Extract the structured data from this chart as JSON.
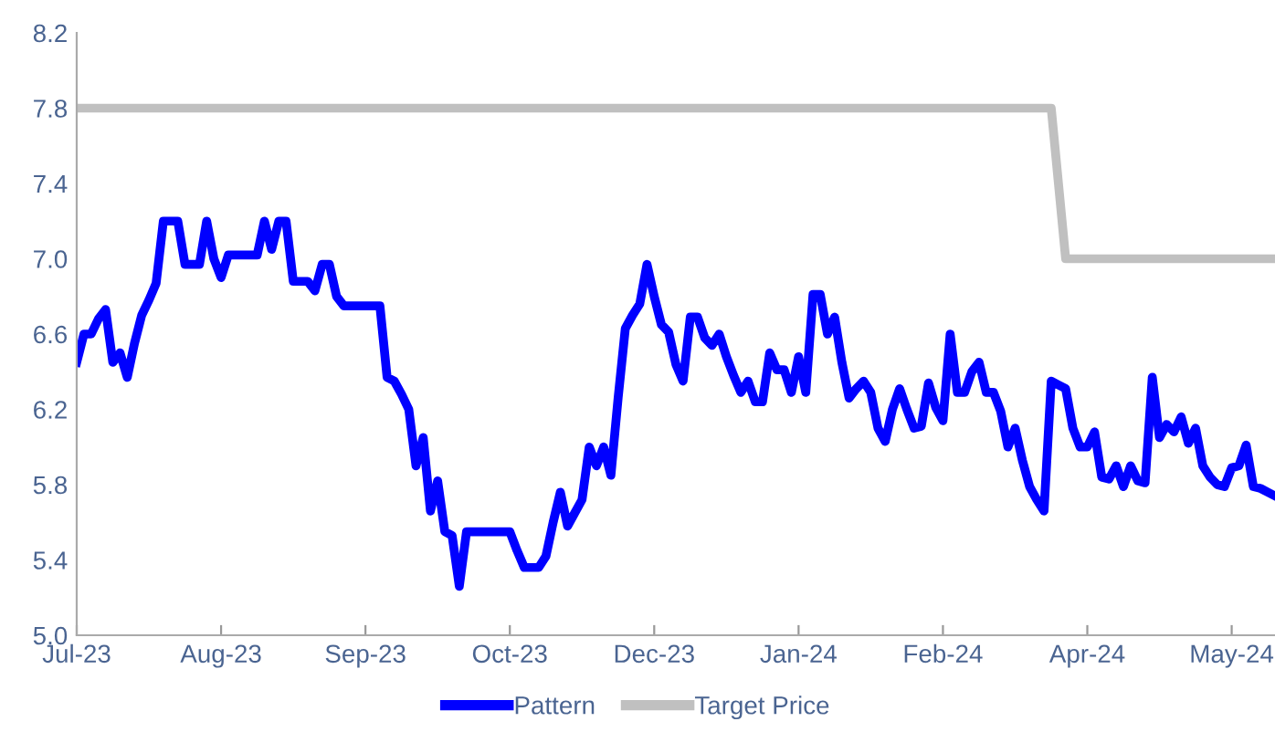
{
  "chart_data": {
    "type": "line",
    "ylim": [
      5.0,
      8.2
    ],
    "yticks": [
      {
        "value": 5.0,
        "label": "5.0"
      },
      {
        "value": 5.4,
        "label": "5.4"
      },
      {
        "value": 5.8,
        "label": "5.8"
      },
      {
        "value": 6.2,
        "label": "6.2"
      },
      {
        "value": 6.6,
        "label": "6.6"
      },
      {
        "value": 7.0,
        "label": "7.0"
      },
      {
        "value": 7.4,
        "label": "7.4"
      },
      {
        "value": 7.8,
        "label": "7.8"
      },
      {
        "value": 8.2,
        "label": "8.2"
      }
    ],
    "categories": [
      "Jul-23",
      null,
      null,
      null,
      null,
      null,
      null,
      null,
      null,
      null,
      null,
      null,
      null,
      null,
      null,
      null,
      null,
      null,
      null,
      null,
      "Aug-23",
      null,
      null,
      null,
      null,
      null,
      null,
      null,
      null,
      null,
      null,
      null,
      null,
      null,
      null,
      null,
      null,
      null,
      null,
      null,
      "Sep-23",
      null,
      null,
      null,
      null,
      null,
      null,
      null,
      null,
      null,
      null,
      null,
      null,
      null,
      null,
      null,
      null,
      null,
      null,
      null,
      "Oct-23",
      null,
      null,
      null,
      null,
      null,
      null,
      null,
      null,
      null,
      null,
      null,
      null,
      null,
      null,
      null,
      null,
      null,
      null,
      null,
      "Dec-23",
      null,
      null,
      null,
      null,
      null,
      null,
      null,
      null,
      null,
      null,
      null,
      null,
      null,
      null,
      null,
      null,
      null,
      null,
      null,
      "Jan-24",
      null,
      null,
      null,
      null,
      null,
      null,
      null,
      null,
      null,
      null,
      null,
      null,
      null,
      null,
      null,
      null,
      null,
      null,
      null,
      "Feb-24",
      null,
      null,
      null,
      null,
      null,
      null,
      null,
      null,
      null,
      null,
      null,
      null,
      null,
      null,
      null,
      null,
      null,
      null,
      null,
      "Apr-24",
      null,
      null,
      null,
      null,
      null,
      null,
      null,
      null,
      null,
      null,
      null,
      null,
      null,
      null,
      null,
      null,
      null,
      null,
      null,
      "May-24",
      null,
      null,
      null,
      null,
      null,
      null
    ],
    "grid": false,
    "legend": "bottom",
    "marker": "none",
    "line_style": "solid",
    "series": [
      {
        "name": "Pattern",
        "color": "#0000ff",
        "values": [
          6.45,
          6.6,
          6.6,
          6.68,
          6.73,
          6.45,
          6.5,
          6.37,
          6.55,
          6.7,
          6.78,
          6.87,
          7.2,
          7.2,
          7.2,
          6.97,
          6.97,
          6.97,
          7.2,
          7.0,
          6.9,
          7.02,
          7.02,
          7.02,
          7.02,
          7.02,
          7.2,
          7.05,
          7.2,
          7.2,
          6.88,
          6.88,
          6.88,
          6.83,
          6.97,
          6.97,
          6.8,
          6.75,
          6.75,
          6.75,
          6.75,
          6.75,
          6.75,
          6.37,
          6.35,
          6.28,
          6.2,
          5.9,
          6.05,
          5.66,
          5.82,
          5.55,
          5.53,
          5.26,
          5.55,
          5.55,
          5.55,
          5.55,
          5.55,
          5.55,
          5.55,
          5.45,
          5.36,
          5.36,
          5.36,
          5.42,
          5.6,
          5.76,
          5.58,
          5.65,
          5.72,
          6.0,
          5.9,
          6.0,
          5.85,
          6.26,
          6.63,
          6.7,
          6.76,
          6.97,
          6.8,
          6.65,
          6.61,
          6.44,
          6.35,
          6.69,
          6.69,
          6.58,
          6.54,
          6.6,
          6.48,
          6.38,
          6.29,
          6.35,
          6.24,
          6.24,
          6.5,
          6.41,
          6.41,
          6.29,
          6.48,
          6.29,
          6.81,
          6.81,
          6.6,
          6.69,
          6.45,
          6.26,
          6.31,
          6.35,
          6.29,
          6.1,
          6.03,
          6.2,
          6.31,
          6.2,
          6.1,
          6.11,
          6.34,
          6.21,
          6.14,
          6.6,
          6.29,
          6.29,
          6.4,
          6.45,
          6.29,
          6.29,
          6.19,
          6.0,
          6.1,
          5.93,
          5.79,
          5.72,
          5.66,
          6.35,
          6.33,
          6.31,
          6.1,
          6.0,
          6.0,
          6.08,
          5.84,
          5.83,
          5.9,
          5.79,
          5.9,
          5.82,
          5.81,
          6.37,
          6.05,
          6.12,
          6.08,
          6.16,
          6.02,
          6.1,
          5.9,
          5.84,
          5.8,
          5.79,
          5.89,
          5.9,
          6.01,
          5.79,
          5.78,
          5.76,
          5.74
        ]
      },
      {
        "name": "Target Price",
        "color": "#c0c0c0",
        "values": [
          7.8,
          7.8,
          7.8,
          7.8,
          7.8,
          7.8,
          7.8,
          7.8,
          7.8,
          7.8,
          7.8,
          7.8,
          7.8,
          7.8,
          7.8,
          7.8,
          7.8,
          7.8,
          7.8,
          7.8,
          7.8,
          7.8,
          7.8,
          7.8,
          7.8,
          7.8,
          7.8,
          7.8,
          7.8,
          7.8,
          7.8,
          7.8,
          7.8,
          7.8,
          7.8,
          7.8,
          7.8,
          7.8,
          7.8,
          7.8,
          7.8,
          7.8,
          7.8,
          7.8,
          7.8,
          7.8,
          7.8,
          7.8,
          7.8,
          7.8,
          7.8,
          7.8,
          7.8,
          7.8,
          7.8,
          7.8,
          7.8,
          7.8,
          7.8,
          7.8,
          7.8,
          7.8,
          7.8,
          7.8,
          7.8,
          7.8,
          7.8,
          7.8,
          7.8,
          7.8,
          7.8,
          7.8,
          7.8,
          7.8,
          7.8,
          7.8,
          7.8,
          7.8,
          7.8,
          7.8,
          7.8,
          7.8,
          7.8,
          7.8,
          7.8,
          7.8,
          7.8,
          7.8,
          7.8,
          7.8,
          7.8,
          7.8,
          7.8,
          7.8,
          7.8,
          7.8,
          7.8,
          7.8,
          7.8,
          7.8,
          7.8,
          7.8,
          7.8,
          7.8,
          7.8,
          7.8,
          7.8,
          7.8,
          7.8,
          7.8,
          7.8,
          7.8,
          7.8,
          7.8,
          7.8,
          7.8,
          7.8,
          7.8,
          7.8,
          7.8,
          7.8,
          7.8,
          7.8,
          7.8,
          7.8,
          7.8,
          7.8,
          7.8,
          7.8,
          7.8,
          7.8,
          7.8,
          7.8,
          7.8,
          7.8,
          7.8,
          7.4,
          7.0,
          7.0,
          7.0,
          7.0,
          7.0,
          7.0,
          7.0,
          7.0,
          7.0,
          7.0,
          7.0,
          7.0,
          7.0,
          7.0,
          7.0,
          7.0,
          7.0,
          7.0,
          7.0,
          7.0,
          7.0,
          7.0,
          7.0,
          7.0,
          7.0,
          7.0,
          7.0,
          7.0,
          7.0,
          7.0
        ]
      }
    ]
  }
}
